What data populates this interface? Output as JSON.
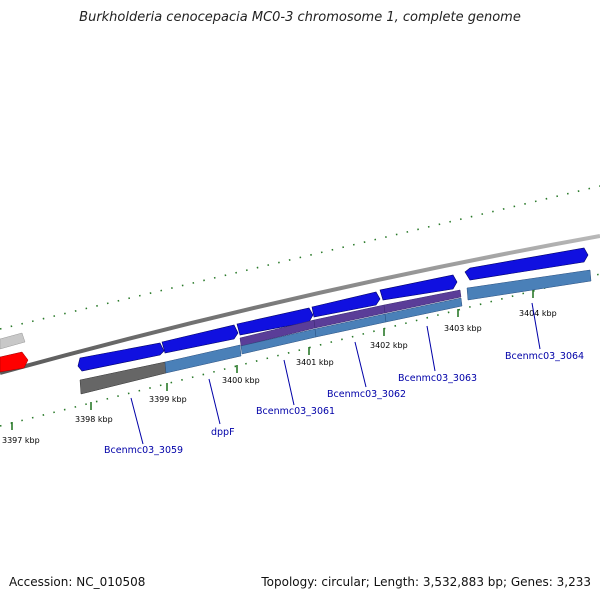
{
  "title": "Burkholderia cenocepacia MC0-3 chromosome 1, complete genome",
  "footer": {
    "accession": "Accession: NC_010508",
    "summary": "Topology: circular; Length: 3,532,883 bp; Genes: 3,233"
  },
  "colors": {
    "forward_gene": "#1010e0",
    "reverse_gene": "#4a80b8",
    "reverse_gene_purple": "#5a3d98",
    "reverse_gene_gray": "#666666",
    "highlight_gene": "#ff0000",
    "faded_gene": "#c8c8c8",
    "backbone": "#808080",
    "scale_tick": "#2a7a2a",
    "gene_label": "#0000a8"
  },
  "scale_ticks": [
    "3397 kbp",
    "3398 kbp",
    "3399 kbp",
    "3400 kbp",
    "3401 kbp",
    "3402 kbp",
    "3403 kbp",
    "3404 kbp"
  ],
  "gene_labels": [
    "Bcenmc03_3059",
    "dppF",
    "Bcenmc03_3061",
    "Bcenmc03_3062",
    "Bcenmc03_3063",
    "Bcenmc03_3064"
  ]
}
